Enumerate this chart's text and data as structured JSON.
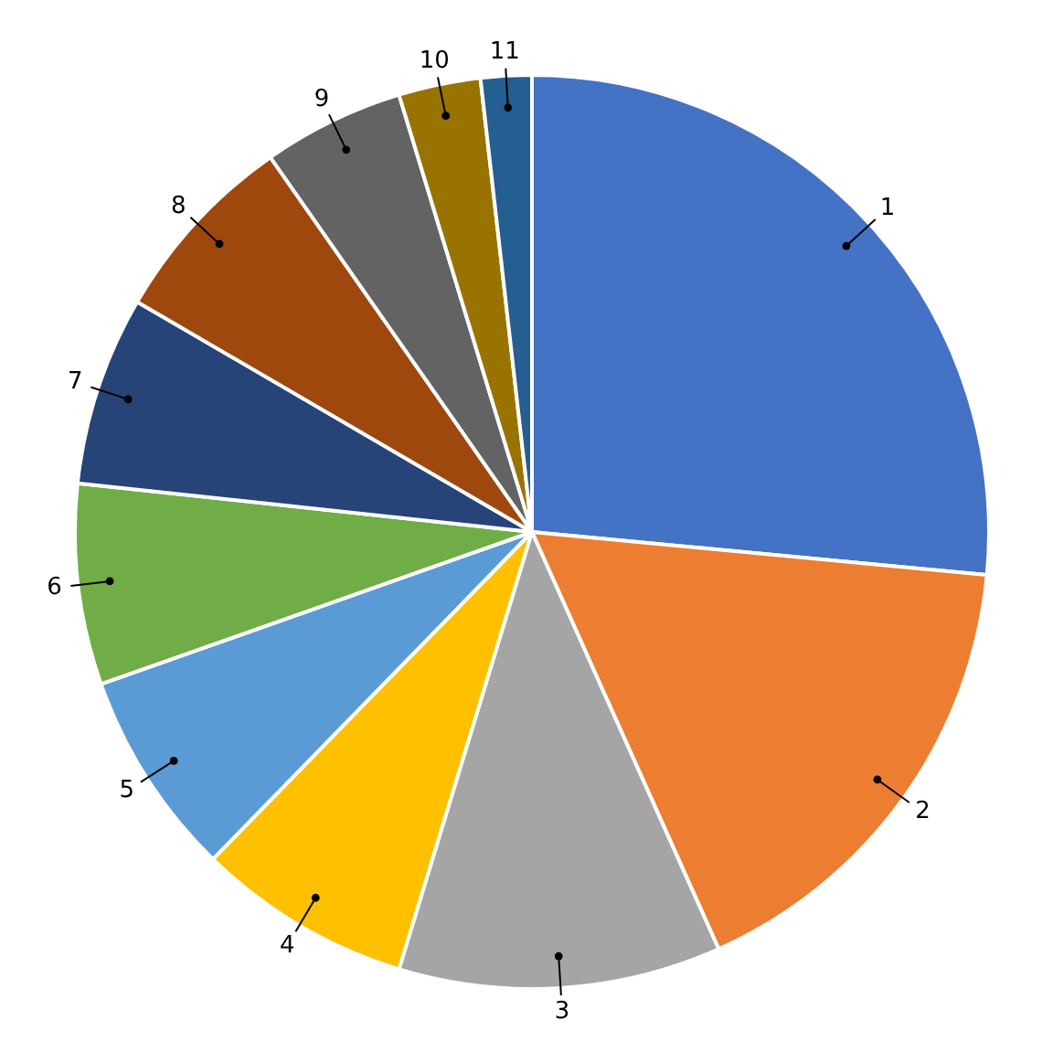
{
  "chart_data": {
    "type": "pie",
    "categories": [
      "1",
      "2",
      "3",
      "4",
      "5",
      "6",
      "7",
      "8",
      "9",
      "10",
      "11"
    ],
    "values": [
      26.5,
      16.8,
      11.4,
      7.6,
      7.3,
      7.1,
      6.7,
      6.9,
      5.0,
      2.9,
      1.8
    ],
    "colors": [
      "#4472c4",
      "#ed7d31",
      "#a5a5a5",
      "#ffc000",
      "#5b9bd5",
      "#70ad47",
      "#264478",
      "#9e480e",
      "#636363",
      "#997300",
      "#255e91"
    ]
  }
}
